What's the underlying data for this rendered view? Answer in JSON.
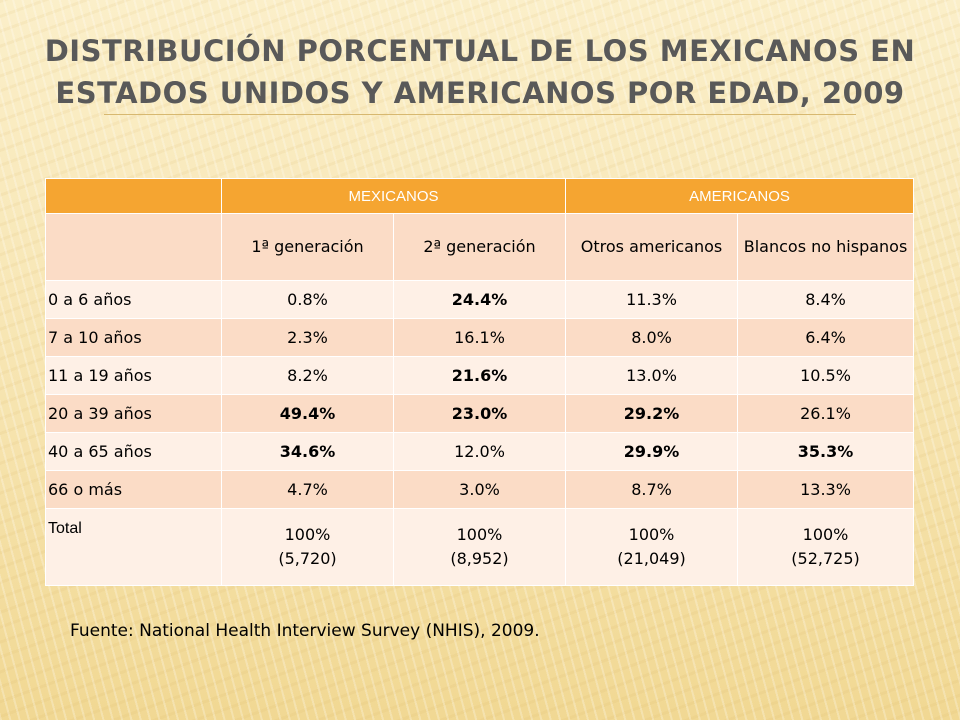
{
  "title": {
    "line1": "DISTRIBUCIÓN PORCENTUAL DE LOS MEXICANOS EN",
    "line2": "ESTADOS UNIDOS Y AMERICANOS POR EDAD, 2009"
  },
  "table": {
    "groups": {
      "mexicanos": "MEXICANOS",
      "americanos": "AMERICANOS"
    },
    "columns": [
      "1ª generación",
      "2ª generación",
      "Otros americanos",
      "Blancos no hispanos"
    ],
    "rows": [
      {
        "label": "0 a 6 años",
        "values": [
          "0.8%",
          "24.4%",
          "11.3%",
          "8.4%"
        ]
      },
      {
        "label": "7 a 10 años",
        "values": [
          "2.3%",
          "16.1%",
          "8.0%",
          "6.4%"
        ]
      },
      {
        "label": "11 a 19 años",
        "values": [
          "8.2%",
          "21.6%",
          "13.0%",
          "10.5%"
        ]
      },
      {
        "label": "20 a 39 años",
        "values": [
          "49.4%",
          "23.0%",
          "29.2%",
          "26.1%"
        ]
      },
      {
        "label": "40 a 65 años",
        "values": [
          "34.6%",
          "12.0%",
          "29.9%",
          "35.3%"
        ]
      },
      {
        "label": "66 o más",
        "values": [
          "4.7%",
          "3.0%",
          "8.7%",
          "13.3%"
        ]
      }
    ],
    "total": {
      "label": "Total",
      "percent": [
        "100%",
        "100%",
        "100%",
        "100%"
      ],
      "counts": [
        "(5,720)",
        "(8,952)",
        "(21,049)",
        "(52,725)"
      ]
    }
  },
  "source": "Fuente: National Health Interview Survey (NHIS), 2009."
}
